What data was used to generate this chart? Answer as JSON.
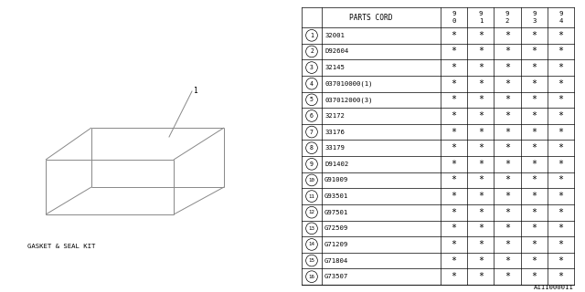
{
  "parts_cord_label": "PARTS CORD",
  "year_cols_top": [
    "9",
    "9",
    "9",
    "9",
    "9"
  ],
  "year_cols_bot": [
    "0",
    "1",
    "2",
    "3",
    "4"
  ],
  "rows": [
    {
      "num": 1,
      "part": "32001"
    },
    {
      "num": 2,
      "part": "D92604"
    },
    {
      "num": 3,
      "part": "32145"
    },
    {
      "num": 4,
      "part": "037010000(1)"
    },
    {
      "num": 5,
      "part": "037012000(3)"
    },
    {
      "num": 6,
      "part": "32172"
    },
    {
      "num": 7,
      "part": "33176"
    },
    {
      "num": 8,
      "part": "33179"
    },
    {
      "num": 9,
      "part": "D91402"
    },
    {
      "num": 10,
      "part": "G91009"
    },
    {
      "num": 11,
      "part": "G93501"
    },
    {
      "num": 12,
      "part": "G97501"
    },
    {
      "num": 13,
      "part": "G72509"
    },
    {
      "num": 14,
      "part": "G71209"
    },
    {
      "num": 15,
      "part": "G71804"
    },
    {
      "num": 16,
      "part": "G73507"
    }
  ],
  "label_text": "GASKET & SEAL KIT",
  "diagram_number": "A111000011",
  "bg_color": "#ffffff",
  "line_color": "#888888",
  "text_color": "#000000",
  "font_size": 5.2
}
